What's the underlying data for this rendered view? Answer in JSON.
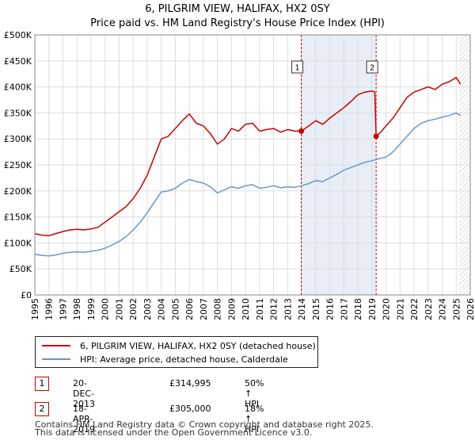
{
  "header": {
    "title_line1": "6, PILGRIM VIEW, HALIFAX, HX2 0SY",
    "title_line2": "Price paid vs. HM Land Registry's House Price Index (HPI)"
  },
  "colors": {
    "property": "#cc0000",
    "hpi": "#6699cc",
    "grid": "#dddddd",
    "shade": "#e8eef8"
  },
  "chart_data": {
    "type": "line",
    "title": "6, PILGRIM VIEW, HALIFAX, HX2 0SY",
    "subtitle": "Price paid vs. HM Land Registry's House Price Index (HPI)",
    "xlim": [
      1995,
      2026
    ],
    "ylim": [
      0,
      500000
    ],
    "y_ticks": [
      0,
      50000,
      100000,
      150000,
      200000,
      250000,
      300000,
      350000,
      400000,
      450000,
      500000
    ],
    "y_tick_labels": [
      "£0",
      "£50K",
      "£100K",
      "£150K",
      "£200K",
      "£250K",
      "£300K",
      "£350K",
      "£400K",
      "£450K",
      "£500K"
    ],
    "x_ticks": [
      1995,
      1996,
      1997,
      1998,
      1999,
      2000,
      2001,
      2002,
      2003,
      2004,
      2005,
      2006,
      2007,
      2008,
      2009,
      2010,
      2011,
      2012,
      2013,
      2014,
      2015,
      2016,
      2017,
      2018,
      2019,
      2020,
      2021,
      2022,
      2023,
      2024,
      2025,
      2026
    ],
    "x_tick_labels": [
      "1995",
      "1996",
      "1997",
      "1998",
      "1999",
      "2000",
      "2001",
      "2002",
      "2003",
      "2004",
      "2005",
      "2006",
      "2007",
      "2008",
      "2009",
      "2010",
      "2011",
      "2012",
      "2013",
      "2014",
      "2015",
      "2016",
      "2017",
      "2018",
      "2019",
      "2020",
      "2021",
      "2022",
      "2023",
      "2024",
      "2025",
      "2026"
    ],
    "grid": true,
    "shaded_range": [
      2013.97,
      2019.3
    ],
    "hatched_from": 2025.2,
    "series": [
      {
        "name": "6, PILGRIM VIEW, HALIFAX, HX2 0SY (detached house)",
        "color": "#cc0000",
        "x": [
          1995.0,
          1995.5,
          1996.0,
          1996.5,
          1997.0,
          1997.5,
          1998.0,
          1998.5,
          1999.0,
          1999.5,
          2000.0,
          2000.5,
          2001.0,
          2001.5,
          2002.0,
          2002.5,
          2003.0,
          2003.5,
          2004.0,
          2004.5,
          2005.0,
          2005.5,
          2006.0,
          2006.5,
          2007.0,
          2007.5,
          2008.0,
          2008.5,
          2009.0,
          2009.5,
          2010.0,
          2010.5,
          2011.0,
          2011.5,
          2012.0,
          2012.5,
          2013.0,
          2013.5,
          2013.97,
          2014.5,
          2015.0,
          2015.5,
          2016.0,
          2016.5,
          2017.0,
          2017.5,
          2018.0,
          2018.5,
          2019.0,
          2019.2,
          2019.3,
          2019.7,
          2020.0,
          2020.5,
          2021.0,
          2021.5,
          2022.0,
          2022.5,
          2023.0,
          2023.5,
          2024.0,
          2024.5,
          2025.0,
          2025.3
        ],
        "values": [
          118000,
          115000,
          114000,
          118000,
          122000,
          125000,
          126000,
          125000,
          127000,
          130000,
          140000,
          150000,
          160000,
          170000,
          185000,
          205000,
          230000,
          265000,
          300000,
          305000,
          320000,
          335000,
          348000,
          330000,
          325000,
          310000,
          290000,
          300000,
          320000,
          315000,
          328000,
          330000,
          315000,
          318000,
          320000,
          313000,
          318000,
          315000,
          314995,
          325000,
          335000,
          328000,
          340000,
          350000,
          360000,
          372000,
          385000,
          390000,
          392000,
          390000,
          305000,
          315000,
          325000,
          340000,
          360000,
          380000,
          390000,
          395000,
          400000,
          395000,
          405000,
          410000,
          418000,
          405000
        ]
      },
      {
        "name": "HPI: Average price, detached house, Calderdale",
        "color": "#6699cc",
        "x": [
          1995.0,
          1995.5,
          1996.0,
          1996.5,
          1997.0,
          1997.5,
          1998.0,
          1998.5,
          1999.0,
          1999.5,
          2000.0,
          2000.5,
          2001.0,
          2001.5,
          2002.0,
          2002.5,
          2003.0,
          2003.5,
          2004.0,
          2004.5,
          2005.0,
          2005.5,
          2006.0,
          2006.5,
          2007.0,
          2007.5,
          2008.0,
          2008.5,
          2009.0,
          2009.5,
          2010.0,
          2010.5,
          2011.0,
          2011.5,
          2012.0,
          2012.5,
          2013.0,
          2013.5,
          2014.0,
          2014.5,
          2015.0,
          2015.5,
          2016.0,
          2016.5,
          2017.0,
          2017.5,
          2018.0,
          2018.5,
          2019.0,
          2019.5,
          2020.0,
          2020.5,
          2021.0,
          2021.5,
          2022.0,
          2022.5,
          2023.0,
          2023.5,
          2024.0,
          2024.5,
          2025.0,
          2025.3
        ],
        "values": [
          78000,
          76000,
          75000,
          77000,
          80000,
          82000,
          83000,
          82000,
          84000,
          86000,
          90000,
          96000,
          103000,
          112000,
          125000,
          140000,
          158000,
          178000,
          198000,
          200000,
          205000,
          215000,
          222000,
          218000,
          215000,
          208000,
          196000,
          202000,
          208000,
          205000,
          210000,
          212000,
          205000,
          207000,
          210000,
          206000,
          208000,
          207000,
          210000,
          214000,
          220000,
          218000,
          225000,
          232000,
          240000,
          245000,
          250000,
          255000,
          258000,
          262000,
          265000,
          275000,
          290000,
          305000,
          320000,
          330000,
          335000,
          338000,
          342000,
          345000,
          350000,
          345000
        ]
      }
    ],
    "markers": [
      {
        "label": "1",
        "x": 2013.97,
        "y": 314995
      },
      {
        "label": "2",
        "x": 2019.3,
        "y": 305000
      }
    ]
  },
  "legend": {
    "items": [
      {
        "label": "6, PILGRIM VIEW, HALIFAX, HX2 0SY (detached house)"
      },
      {
        "label": "HPI: Average price, detached house, Calderdale"
      }
    ]
  },
  "transactions": [
    {
      "num": "1",
      "date": "20-DEC-2013",
      "price": "£314,995",
      "hpi": "50% ↑ HPI"
    },
    {
      "num": "2",
      "date": "18-APR-2019",
      "price": "£305,000",
      "hpi": "18% ↑ HPI"
    }
  ],
  "footer": {
    "line1": "Contains HM Land Registry data © Crown copyright and database right 2025.",
    "line2": "This data is licensed under the Open Government Licence v3.0."
  }
}
